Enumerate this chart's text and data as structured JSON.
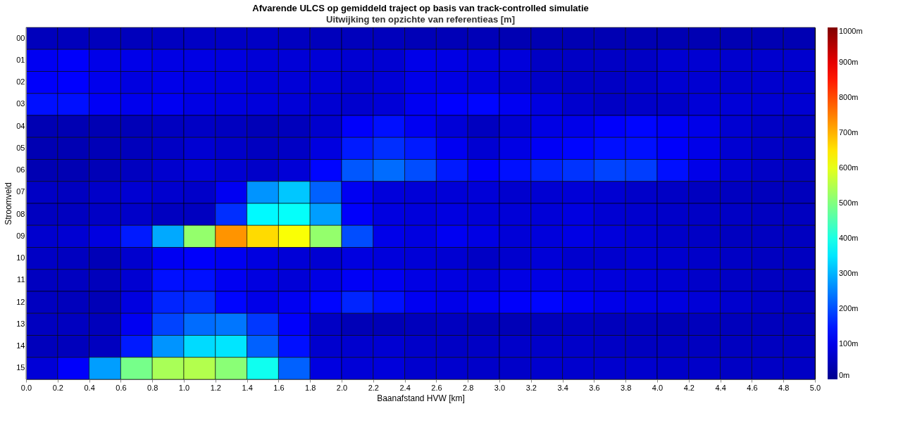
{
  "chart_data": {
    "type": "heatmap",
    "title": "Afvarende ULCS op gemiddeld traject op basis van track-controlled simulatie",
    "subtitle": "Uitwijking ten opzichte van referentieas [m]",
    "xlabel": "Baanafstand HVW [km]",
    "ylabel": "Stroomveld",
    "x": [
      0,
      0.2,
      0.4,
      0.6,
      0.8,
      1,
      1.2,
      1.4,
      1.6,
      1.8,
      2,
      2.2,
      2.4,
      2.6,
      2.8,
      3,
      3.2,
      3.4,
      3.6,
      3.8,
      4,
      4.2,
      4.4,
      4.6,
      4.8
    ],
    "y_categories": [
      "00",
      "01",
      "02",
      "03",
      "04",
      "05",
      "06",
      "07",
      "08",
      "09",
      "10",
      "11",
      "12",
      "13",
      "14",
      "15"
    ],
    "xlim": [
      0,
      5
    ],
    "xticks": [
      {
        "value": 0,
        "label": "0.0"
      },
      {
        "value": 0.2,
        "label": "0.2"
      },
      {
        "value": 0.4,
        "label": "0.4"
      },
      {
        "value": 0.6,
        "label": "0.6"
      },
      {
        "value": 0.8,
        "label": "0.8"
      },
      {
        "value": 1,
        "label": "1.0"
      },
      {
        "value": 1.2,
        "label": "1.2"
      },
      {
        "value": 1.4,
        "label": "1.4"
      },
      {
        "value": 1.6,
        "label": "1.6"
      },
      {
        "value": 1.8,
        "label": "1.8"
      },
      {
        "value": 2,
        "label": "2.0"
      },
      {
        "value": 2.2,
        "label": "2.2"
      },
      {
        "value": 2.4,
        "label": "2.4"
      },
      {
        "value": 2.6,
        "label": "2.6"
      },
      {
        "value": 2.8,
        "label": "2.8"
      },
      {
        "value": 3,
        "label": "3.0"
      },
      {
        "value": 3.2,
        "label": "3.2"
      },
      {
        "value": 3.4,
        "label": "3.4"
      },
      {
        "value": 3.6,
        "label": "3.6"
      },
      {
        "value": 3.8,
        "label": "3.8"
      },
      {
        "value": 4,
        "label": "4.0"
      },
      {
        "value": 4.2,
        "label": "4.2"
      },
      {
        "value": 4.4,
        "label": "4.4"
      },
      {
        "value": 4.6,
        "label": "4.6"
      },
      {
        "value": 4.8,
        "label": "4.8"
      },
      {
        "value": 5,
        "label": "5.0"
      }
    ],
    "clim": [
      0,
      1000
    ],
    "cticks": [
      {
        "value": 0,
        "label": "0m"
      },
      {
        "value": 100,
        "label": "100m"
      },
      {
        "value": 200,
        "label": "200m"
      },
      {
        "value": 300,
        "label": "300m"
      },
      {
        "value": 400,
        "label": "400m"
      },
      {
        "value": 500,
        "label": "500m"
      },
      {
        "value": 600,
        "label": "600m"
      },
      {
        "value": 700,
        "label": "700m"
      },
      {
        "value": 800,
        "label": "800m"
      },
      {
        "value": 900,
        "label": "900m"
      },
      {
        "value": 1000,
        "label": "1000m"
      }
    ],
    "cells": [
      [
        50,
        50,
        50,
        50,
        55,
        60,
        60,
        60,
        55,
        50,
        50,
        50,
        45,
        45,
        45,
        40,
        40,
        40,
        40,
        40,
        40,
        40,
        40,
        40,
        40
      ],
      [
        110,
        120,
        100,
        100,
        95,
        95,
        90,
        80,
        80,
        80,
        75,
        75,
        100,
        95,
        85,
        85,
        60,
        60,
        60,
        60,
        75,
        75,
        70,
        70,
        70
      ],
      [
        120,
        125,
        105,
        90,
        100,
        95,
        90,
        80,
        80,
        80,
        70,
        80,
        100,
        95,
        85,
        75,
        65,
        60,
        60,
        65,
        75,
        75,
        70,
        70,
        70
      ],
      [
        140,
        140,
        115,
        105,
        110,
        95,
        90,
        85,
        80,
        75,
        70,
        80,
        110,
        125,
        130,
        110,
        90,
        70,
        60,
        65,
        65,
        80,
        80,
        75,
        75
      ],
      [
        40,
        40,
        40,
        45,
        55,
        60,
        55,
        45,
        50,
        70,
        120,
        140,
        110,
        80,
        55,
        75,
        95,
        100,
        120,
        130,
        115,
        100,
        75,
        60,
        55
      ],
      [
        40,
        40,
        45,
        50,
        60,
        75,
        65,
        55,
        60,
        90,
        150,
        170,
        150,
        110,
        75,
        95,
        115,
        130,
        140,
        140,
        120,
        100,
        75,
        60,
        55
      ],
      [
        40,
        40,
        45,
        55,
        70,
        85,
        75,
        65,
        80,
        130,
        210,
        230,
        200,
        150,
        120,
        140,
        160,
        175,
        190,
        185,
        140,
        100,
        75,
        60,
        55
      ],
      [
        60,
        55,
        65,
        75,
        70,
        65,
        110,
        270,
        320,
        220,
        110,
        85,
        80,
        80,
        80,
        70,
        75,
        80,
        75,
        65,
        60,
        55,
        55,
        50,
        50
      ],
      [
        55,
        55,
        60,
        65,
        55,
        55,
        170,
        370,
        380,
        280,
        120,
        90,
        85,
        90,
        80,
        80,
        80,
        90,
        75,
        70,
        65,
        60,
        60,
        55,
        55
      ],
      [
        70,
        75,
        90,
        150,
        290,
        520,
        730,
        660,
        620,
        520,
        200,
        100,
        90,
        110,
        95,
        80,
        85,
        95,
        85,
        75,
        65,
        60,
        55,
        55,
        55
      ],
      [
        60,
        55,
        45,
        70,
        110,
        120,
        110,
        90,
        80,
        75,
        90,
        85,
        80,
        75,
        60,
        70,
        80,
        70,
        70,
        75,
        70,
        65,
        60,
        55,
        55
      ],
      [
        55,
        55,
        50,
        75,
        140,
        140,
        110,
        90,
        80,
        95,
        115,
        110,
        95,
        90,
        80,
        95,
        95,
        90,
        85,
        80,
        75,
        65,
        60,
        55,
        55
      ],
      [
        55,
        50,
        45,
        90,
        160,
        170,
        130,
        100,
        110,
        130,
        160,
        140,
        110,
        100,
        110,
        120,
        130,
        115,
        100,
        95,
        90,
        80,
        70,
        60,
        55
      ],
      [
        55,
        55,
        50,
        110,
        190,
        230,
        240,
        180,
        120,
        60,
        45,
        45,
        50,
        55,
        45,
        45,
        50,
        55,
        50,
        50,
        45,
        50,
        50,
        50,
        50
      ],
      [
        50,
        50,
        55,
        150,
        270,
        340,
        350,
        220,
        140,
        70,
        70,
        75,
        65,
        60,
        60,
        65,
        65,
        65,
        60,
        55,
        55,
        55,
        55,
        55,
        55
      ],
      [
        80,
        120,
        280,
        490,
        540,
        550,
        510,
        390,
        220,
        90,
        80,
        85,
        70,
        70,
        65,
        65,
        70,
        70,
        70,
        70,
        65,
        65,
        60,
        60,
        60
      ]
    ]
  }
}
